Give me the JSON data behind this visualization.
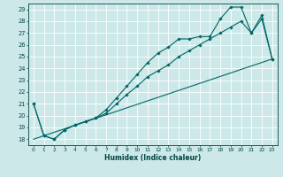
{
  "xlabel": "Humidex (Indice chaleur)",
  "bg_color": "#cce8e8",
  "grid_color": "#ffffff",
  "line_color": "#006666",
  "xlim": [
    -0.5,
    23.5
  ],
  "ylim": [
    17.5,
    29.5
  ],
  "xticks": [
    0,
    1,
    2,
    3,
    4,
    5,
    6,
    7,
    8,
    9,
    10,
    11,
    12,
    13,
    14,
    15,
    16,
    17,
    18,
    19,
    20,
    21,
    22,
    23
  ],
  "yticks": [
    18,
    19,
    20,
    21,
    22,
    23,
    24,
    25,
    26,
    27,
    28,
    29
  ],
  "line1_x": [
    0,
    1,
    2,
    3,
    4,
    5,
    6,
    7,
    8,
    9,
    10,
    11,
    12,
    13,
    14,
    15,
    16,
    17,
    18,
    19,
    20,
    21,
    22,
    23
  ],
  "line1_y": [
    21.0,
    18.3,
    18.0,
    18.8,
    19.2,
    19.5,
    19.8,
    20.5,
    21.5,
    22.5,
    23.5,
    24.5,
    25.3,
    25.8,
    26.5,
    26.5,
    26.7,
    26.7,
    28.2,
    29.2,
    29.2,
    27.0,
    28.5,
    24.8
  ],
  "line2_x": [
    0,
    1,
    2,
    3,
    4,
    5,
    6,
    7,
    8,
    9,
    10,
    11,
    12,
    13,
    14,
    15,
    16,
    17,
    18,
    19,
    20,
    21,
    22,
    23
  ],
  "line2_y": [
    21.0,
    18.3,
    18.0,
    18.8,
    19.2,
    19.5,
    19.8,
    20.2,
    21.0,
    21.8,
    22.5,
    23.3,
    23.8,
    24.3,
    25.0,
    25.5,
    26.0,
    26.5,
    27.0,
    27.5,
    28.0,
    27.0,
    28.2,
    24.8
  ],
  "line3_x": [
    0,
    23
  ],
  "line3_y": [
    18.0,
    24.8
  ]
}
